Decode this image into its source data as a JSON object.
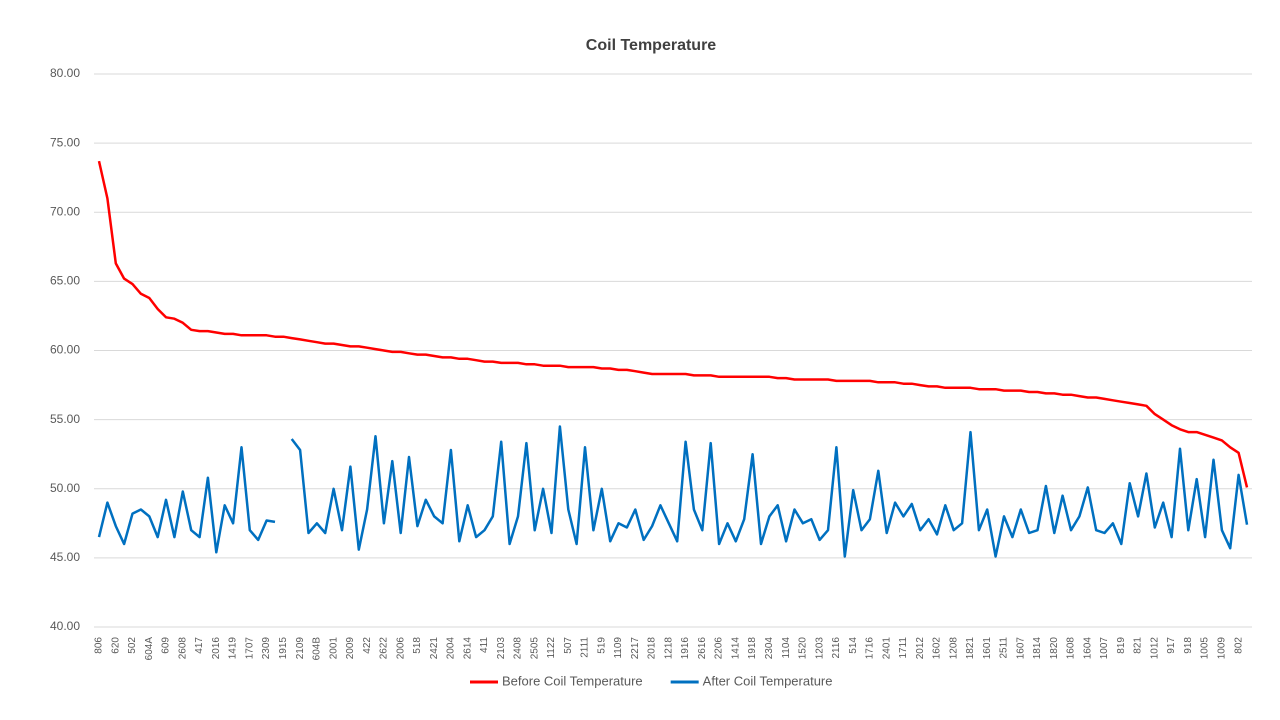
{
  "chart_data": {
    "type": "line",
    "title": "Coil Temperature",
    "categories": [
      "806",
      null,
      "620",
      null,
      "502",
      null,
      "604A",
      null,
      "609",
      null,
      "2608",
      null,
      "417",
      null,
      "2016",
      null,
      "1419",
      null,
      "1707",
      null,
      "2309",
      null,
      "1915",
      null,
      "2109",
      null,
      "604B",
      null,
      "2001",
      null,
      "2009",
      null,
      "422",
      null,
      "2622",
      null,
      "2006",
      null,
      "518",
      null,
      "2421",
      null,
      "2004",
      null,
      "2614",
      null,
      "411",
      null,
      "2103",
      null,
      "2408",
      null,
      "2505",
      null,
      "1122",
      null,
      "507",
      null,
      "2111",
      null,
      "519",
      null,
      "1109",
      null,
      "2217",
      null,
      "2018",
      null,
      "1218",
      null,
      "1916",
      null,
      "2616",
      null,
      "2206",
      null,
      "1414",
      null,
      "1918",
      null,
      "2304",
      null,
      "1104",
      null,
      "1520",
      null,
      "1203",
      null,
      "2116",
      null,
      "514",
      null,
      "1716",
      null,
      "2401",
      null,
      "1711",
      null,
      "2012",
      null,
      "1602",
      null,
      "1208",
      null,
      "1821",
      null,
      "1601",
      null,
      "2511",
      null,
      "1607",
      null,
      "1814",
      null,
      "1820",
      null,
      "1608",
      null,
      "1604",
      null,
      "1007",
      null,
      "819",
      null,
      "821",
      null,
      "1012",
      null,
      "917",
      null,
      "918",
      null,
      "1005",
      null,
      "1009",
      null,
      "802",
      null
    ],
    "series": [
      {
        "name": "Before Coil Temperature",
        "color": "#ff0000",
        "values": [
          73.7,
          71.0,
          66.3,
          65.2,
          64.8,
          64.1,
          63.8,
          63.0,
          62.4,
          62.3,
          62.0,
          61.5,
          61.4,
          61.4,
          61.3,
          61.2,
          61.2,
          61.1,
          61.1,
          61.1,
          61.1,
          61.0,
          61.0,
          60.9,
          60.8,
          60.7,
          60.6,
          60.5,
          60.5,
          60.4,
          60.3,
          60.3,
          60.2,
          60.1,
          60.0,
          59.9,
          59.9,
          59.8,
          59.7,
          59.7,
          59.6,
          59.5,
          59.5,
          59.4,
          59.4,
          59.3,
          59.2,
          59.2,
          59.1,
          59.1,
          59.1,
          59.0,
          59.0,
          58.9,
          58.9,
          58.9,
          58.8,
          58.8,
          58.8,
          58.8,
          58.7,
          58.7,
          58.6,
          58.6,
          58.5,
          58.4,
          58.3,
          58.3,
          58.3,
          58.3,
          58.3,
          58.2,
          58.2,
          58.2,
          58.1,
          58.1,
          58.1,
          58.1,
          58.1,
          58.1,
          58.1,
          58.0,
          58.0,
          57.9,
          57.9,
          57.9,
          57.9,
          57.9,
          57.8,
          57.8,
          57.8,
          57.8,
          57.8,
          57.7,
          57.7,
          57.7,
          57.6,
          57.6,
          57.5,
          57.4,
          57.4,
          57.3,
          57.3,
          57.3,
          57.3,
          57.2,
          57.2,
          57.2,
          57.1,
          57.1,
          57.1,
          57.0,
          57.0,
          56.9,
          56.9,
          56.8,
          56.8,
          56.7,
          56.6,
          56.6,
          56.5,
          56.4,
          56.3,
          56.2,
          56.1,
          56.0,
          55.4,
          55.0,
          54.6,
          54.3,
          54.1,
          54.1,
          53.9,
          53.7,
          53.5,
          53.0,
          52.6,
          50.1
        ]
      },
      {
        "name": "After Coil Temperature",
        "color": "#0070c0",
        "values": [
          46.5,
          49.0,
          47.3,
          46.0,
          48.2,
          48.5,
          48.0,
          46.5,
          49.2,
          46.5,
          49.8,
          47.0,
          46.5,
          50.8,
          45.4,
          48.8,
          47.5,
          53.0,
          47.0,
          46.3,
          47.7,
          47.6,
          null,
          53.6,
          52.8,
          46.8,
          47.5,
          46.8,
          50.0,
          47.0,
          51.6,
          45.6,
          48.5,
          53.8,
          47.5,
          52.0,
          46.8,
          52.3,
          47.3,
          49.2,
          48.0,
          47.5,
          52.8,
          46.2,
          48.8,
          46.5,
          47.0,
          48.0,
          53.4,
          46.0,
          48.0,
          53.3,
          47.0,
          50.0,
          46.8,
          54.5,
          48.5,
          46.0,
          53.0,
          47.0,
          50.0,
          46.2,
          47.5,
          47.2,
          48.5,
          46.3,
          47.3,
          48.8,
          47.5,
          46.2,
          53.4,
          48.5,
          47.0,
          53.3,
          46.0,
          47.5,
          46.2,
          47.8,
          52.5,
          46.0,
          48.0,
          48.8,
          46.2,
          48.5,
          47.5,
          47.8,
          46.3,
          47.0,
          53.0,
          45.1,
          49.9,
          47.0,
          47.8,
          51.3,
          46.8,
          49.0,
          48.0,
          48.9,
          47.0,
          47.8,
          46.7,
          48.8,
          47.0,
          47.5,
          54.1,
          47.0,
          48.5,
          45.1,
          48.0,
          46.5,
          48.5,
          46.8,
          47.0,
          50.2,
          46.8,
          49.5,
          47.0,
          48.0,
          50.1,
          47.0,
          46.8,
          47.5,
          46.0,
          50.4,
          48.0,
          51.1,
          47.2,
          49.0,
          46.5,
          52.9,
          47.0,
          50.7,
          46.5,
          52.1,
          47.0,
          45.7,
          51.0,
          47.4
        ]
      }
    ],
    "ylim": [
      40,
      80
    ],
    "yticks": [
      {
        "value": 40,
        "label": "40.00"
      },
      {
        "value": 45,
        "label": "45.00"
      },
      {
        "value": 50,
        "label": "50.00"
      },
      {
        "value": 55,
        "label": "55.00"
      },
      {
        "value": 60,
        "label": "60.00"
      },
      {
        "value": 65,
        "label": "65.00"
      },
      {
        "value": 70,
        "label": "70.00"
      },
      {
        "value": 75,
        "label": "75.00"
      },
      {
        "value": 80,
        "label": "80.00"
      }
    ],
    "grid": true,
    "legend": "bottom"
  }
}
